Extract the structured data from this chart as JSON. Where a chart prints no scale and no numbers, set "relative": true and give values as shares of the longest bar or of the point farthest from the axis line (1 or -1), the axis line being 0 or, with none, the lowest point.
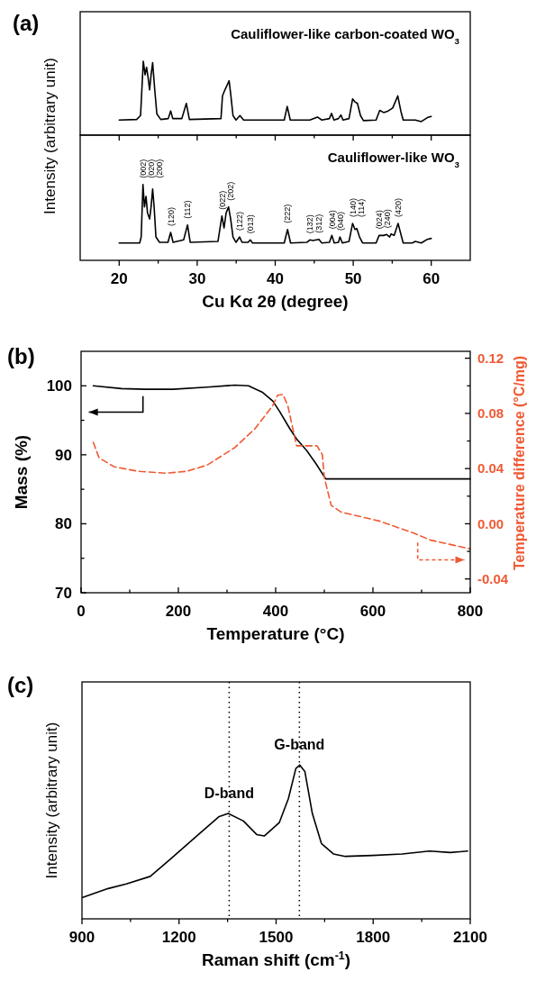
{
  "chart_data": [
    {
      "type": "line",
      "relative": true,
      "title": "Cauliflower-like carbon-coated WO$_{3}$",
      "ylabel": "Intensity (arbitrary unit)",
      "annotations": [
        "(a)"
      ],
      "xlim": [
        15,
        65
      ],
      "xticks": [
        20,
        {
          "value": 25,
          "label": null
        },
        30,
        {
          "value": 35,
          "label": null
        },
        40,
        {
          "value": 45,
          "label": null
        },
        50,
        {
          "value": 55,
          "label": null
        },
        60
      ],
      "tick_labels": false,
      "series": [
        {
          "color": "#000000",
          "x": [
            20,
            22.24,
            22.74,
            23.09,
            23.32,
            23.51,
            23.71,
            23.9,
            24.09,
            24.29,
            24.56,
            24.83,
            25.33,
            26.29,
            26.6,
            26.87,
            28.03,
            28.61,
            29,
            33.05,
            33.24,
            33.55,
            33.82,
            34.09,
            34.32,
            34.59,
            34.98,
            35.48,
            35.95,
            41.16,
            41.54,
            41.93,
            44.44,
            45.41,
            45.98,
            46.95,
            47.22,
            47.53,
            48.11,
            48.42,
            48.69,
            49.46,
            49.92,
            50.23,
            50.54,
            50.93,
            51.31,
            52.93,
            53.4,
            53.9,
            54.48,
            55.06,
            55.71,
            56.1,
            56.41,
            57.95,
            58.73,
            59.5,
            60
          ],
          "values": [
            0.204,
            0.212,
            0.265,
            1,
            0.816,
            0.918,
            0.776,
            0.612,
            0.816,
            0.98,
            0.612,
            0.286,
            0.212,
            0.224,
            0.327,
            0.224,
            0.224,
            0.429,
            0.212,
            0.224,
            0.531,
            0.612,
            0.673,
            0.735,
            0.531,
            0.265,
            0.204,
            0.265,
            0.204,
            0.204,
            0.388,
            0.204,
            0.204,
            0.245,
            0.204,
            0.224,
            0.294,
            0.204,
            0.224,
            0.273,
            0.204,
            0.224,
            0.49,
            0.449,
            0.429,
            0.265,
            0.196,
            0.204,
            0.335,
            0.306,
            0.327,
            0.367,
            0.531,
            0.327,
            0.204,
            0.204,
            0.184,
            0.237,
            0.253
          ]
        }
      ]
    },
    {
      "type": "line",
      "relative": true,
      "title": "Cauliflower-like WO$_{3}$",
      "xlabel": "Cu Kα 2θ (degree)",
      "xlim": [
        15,
        65
      ],
      "xticks": [
        20,
        {
          "value": 25,
          "label": null
        },
        30,
        {
          "value": 35,
          "label": null
        },
        40,
        {
          "value": 45,
          "label": null
        },
        50,
        {
          "value": 55,
          "label": null
        },
        60
      ],
      "tick_labels": "x",
      "annotations": [
        {
          "text": "(002)",
          "x": 23.05,
          "y": 1
        },
        {
          "text": "(020)",
          "x": 23.44,
          "y": 0.842
        },
        {
          "text": "(200)",
          "x": 24.29,
          "y": 0.941
        },
        {
          "text": "(120)",
          "x": 26.6,
          "y": 0.368
        },
        {
          "text": "(112)",
          "x": 28.76,
          "y": 0.466
        },
        {
          "text": "(022)",
          "x": 33.17,
          "y": 0.585
        },
        {
          "text": "(202)",
          "x": 34.02,
          "y": 0.704
        },
        {
          "text": "(122)",
          "x": 35.44,
          "y": 0.308
        },
        {
          "text": "(013)",
          "x": 36.8,
          "y": 0.269
        },
        {
          "text": "(222)",
          "x": 41.58,
          "y": 0.407
        },
        {
          "text": "(132)",
          "x": 44.44,
          "y": 0.269
        },
        {
          "text": "(312)",
          "x": 45.6,
          "y": 0.277
        },
        {
          "text": "(004)",
          "x": 47.26,
          "y": 0.328
        },
        {
          "text": "(040)",
          "x": 48.3,
          "y": 0.308
        },
        {
          "text": "(140)",
          "x": 49.92,
          "y": 0.486
        },
        {
          "text": "(114)",
          "x": 50.46,
          "y": 0.419
        },
        {
          "text": "(024)",
          "x": 53.32,
          "y": 0.328
        },
        {
          "text": "(240)",
          "x": 54.29,
          "y": 0.34
        },
        {
          "text": "(420)",
          "x": 55.75,
          "y": 0.486
        }
      ],
      "series": [
        {
          "color": "#000000",
          "x": [
            20,
            22.63,
            22.82,
            23.05,
            23.24,
            23.44,
            23.63,
            23.9,
            24.09,
            24.29,
            24.48,
            24.71,
            25.17,
            26.25,
            26.6,
            26.91,
            28.26,
            28.76,
            29.11,
            32.66,
            33.17,
            33.44,
            33.71,
            34.02,
            34.29,
            34.59,
            34.98,
            35.44,
            35.75,
            36.53,
            36.8,
            37.1,
            41.16,
            41.58,
            41.97,
            44.05,
            44.44,
            44.83,
            45.6,
            45.98,
            46.95,
            47.26,
            47.57,
            48.11,
            48.3,
            48.61,
            49.46,
            49.92,
            50.23,
            50.46,
            50.81,
            51.2,
            52.93,
            53.32,
            53.9,
            54.29,
            54.67,
            54.86,
            55.25,
            55.75,
            56.1,
            56.41,
            57.57,
            57.95,
            58.73,
            59.5,
            60
          ],
          "values": [
            0.229,
            0.229,
            0.308,
            1,
            0.704,
            0.842,
            0.625,
            0.545,
            0.704,
            0.941,
            0.704,
            0.308,
            0.237,
            0.237,
            0.368,
            0.237,
            0.269,
            0.466,
            0.237,
            0.249,
            0.585,
            0.427,
            0.625,
            0.704,
            0.545,
            0.308,
            0.237,
            0.308,
            0.237,
            0.237,
            0.269,
            0.229,
            0.229,
            0.407,
            0.229,
            0.237,
            0.269,
            0.261,
            0.277,
            0.229,
            0.237,
            0.328,
            0.229,
            0.237,
            0.308,
            0.229,
            0.249,
            0.486,
            0.407,
            0.419,
            0.308,
            0.229,
            0.229,
            0.328,
            0.328,
            0.34,
            0.308,
            0.348,
            0.328,
            0.486,
            0.348,
            0.229,
            0.229,
            0.249,
            0.229,
            0.277,
            0.289
          ]
        }
      ]
    },
    {
      "type": "line",
      "xlabel": "Temperature (°C)",
      "ylabel": "Mass (%)",
      "y2label": "Temperature difference (°C/mg)",
      "annotations": [
        "(b)"
      ],
      "xlim": [
        0,
        800
      ],
      "xticks": [
        0,
        {
          "value": 100,
          "label": null
        },
        200,
        {
          "value": 300,
          "label": null
        },
        400,
        {
          "value": 500,
          "label": null
        },
        600,
        {
          "value": 700,
          "label": null
        },
        800
      ],
      "ylim": [
        70,
        105
      ],
      "yticks": [
        70,
        {
          "value": 75,
          "label": null
        },
        80,
        {
          "value": 85,
          "label": null
        },
        90,
        {
          "value": 95,
          "label": null
        },
        100
      ],
      "y2lim": [
        -0.05,
        0.125
      ],
      "y2ticks": [
        -0.04,
        {
          "value": -0.02,
          "label": null
        },
        {
          "value": 0,
          "label": "0.00"
        },
        {
          "value": 0.02,
          "label": null
        },
        0.04,
        {
          "value": 0.06,
          "label": null
        },
        0.08,
        {
          "value": 0.1,
          "label": null
        },
        0.12
      ],
      "series": [
        {
          "color": "#000000",
          "line_style": "solid",
          "x": [
            25,
            83,
            132,
            189,
            259,
            316,
            344,
            372,
            394,
            408,
            429,
            443,
            464,
            482,
            503,
            600,
            700,
            800
          ],
          "values": [
            100,
            99.6,
            99.5,
            99.5,
            99.8,
            100.1,
            100,
            99.1,
            97.8,
            96.3,
            93.8,
            92.3,
            90.6,
            88.8,
            86.5,
            86.5,
            86.5,
            86.5
          ]
        },
        {
          "color": "#ef5a34",
          "axis": "y2",
          "line_style": "dashed",
          "x": [
            25,
            37,
            68,
            118,
            174,
            217,
            259,
            316,
            358,
            394,
            404,
            415,
            425,
            443,
            457,
            485,
            496,
            500,
            514,
            535,
            613,
            684,
            719,
            800
          ],
          "values": [
            0.059,
            0.0478,
            0.0413,
            0.038,
            0.0367,
            0.038,
            0.0425,
            0.0552,
            0.0691,
            0.0856,
            0.0932,
            0.0937,
            0.0856,
            0.0565,
            0.0565,
            0.0565,
            0.0501,
            0.0337,
            0.0134,
            0.0084,
            0.002,
            -0.0068,
            -0.0119,
            -0.0182
          ]
        }
      ]
    },
    {
      "type": "line",
      "relative": true,
      "xlabel": "Raman shift (cm$^{-1}$)",
      "ylabel": "Intensity (arbitrary unit)",
      "annotations": [
        "(c)"
      ],
      "xlim": [
        900,
        2100
      ],
      "xticks": [
        900,
        {
          "value": 1050,
          "label": null
        },
        1200,
        {
          "value": 1350,
          "label": null
        },
        1500,
        {
          "value": 1650,
          "label": null
        },
        1800,
        {
          "value": 1950,
          "label": null
        },
        2100
      ],
      "ref_lines": [
        {
          "axis": "x",
          "value": 1355,
          "label": "D-band",
          "line_style": "dotted"
        },
        {
          "axis": "x",
          "value": 1572,
          "label": "G-band",
          "line_style": "dotted"
        }
      ],
      "series": [
        {
          "color": "#000000",
          "x": [
            902,
            981,
            1037,
            1111,
            1176,
            1260,
            1324,
            1352,
            1399,
            1440,
            1464,
            1510,
            1538,
            1561,
            1573,
            1589,
            1612,
            1640,
            1677,
            1714,
            1798,
            1890,
            1974,
            2039,
            2092
          ],
          "values": [
            0.139,
            0.197,
            0.227,
            0.276,
            0.393,
            0.548,
            0.665,
            0.685,
            0.636,
            0.548,
            0.539,
            0.626,
            0.782,
            0.977,
            1,
            0.957,
            0.685,
            0.49,
            0.422,
            0.406,
            0.412,
            0.422,
            0.441,
            0.431,
            0.441
          ]
        }
      ]
    }
  ]
}
